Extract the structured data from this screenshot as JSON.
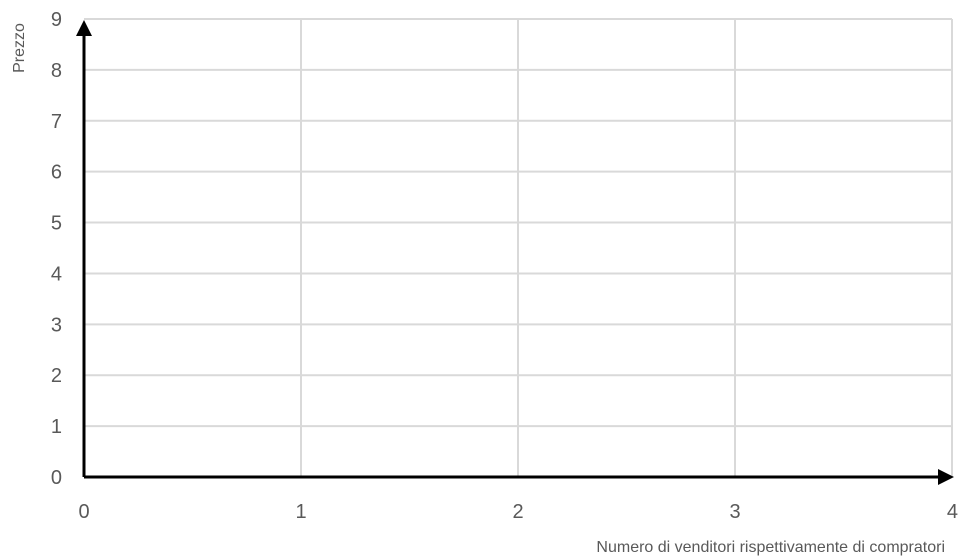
{
  "chart_data": {
    "type": "scatter",
    "title": "",
    "xlabel": "Numero di venditori rispettivamente di compratori",
    "ylabel": "Prezzo",
    "xlim": [
      0,
      4
    ],
    "ylim": [
      0,
      9
    ],
    "xticks": [
      "0",
      "1",
      "2",
      "3",
      "4"
    ],
    "yticks": [
      "0",
      "1",
      "2",
      "3",
      "4",
      "5",
      "6",
      "7",
      "8",
      "9"
    ],
    "grid": true,
    "series": []
  }
}
